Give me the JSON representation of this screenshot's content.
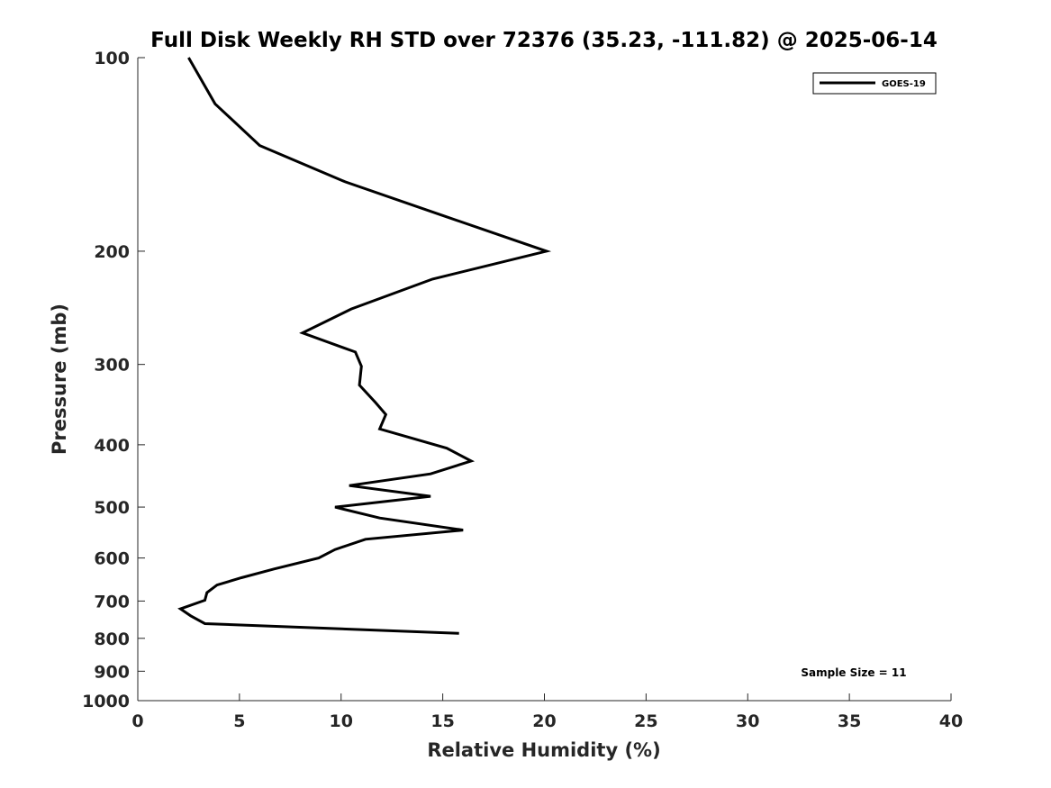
{
  "chart_data": {
    "type": "line",
    "title": "Full Disk Weekly RH STD over 72376 (35.23, -111.82) @ 2025-06-14",
    "xlabel": "Relative Humidity (%)",
    "ylabel": "Pressure (mb)",
    "xlim": [
      0,
      40
    ],
    "ylim": [
      100,
      1000
    ],
    "y_scale": "log",
    "y_reversed": true,
    "x_ticks": [
      0,
      5,
      10,
      15,
      20,
      25,
      30,
      35,
      40
    ],
    "y_ticks": [
      100,
      200,
      300,
      400,
      500,
      600,
      700,
      800,
      900,
      1000
    ],
    "grid": false,
    "legend_position": "top-right",
    "series": [
      {
        "name": "GOES-19",
        "color": "#000000",
        "x": [
          2.5,
          3.8,
          6.0,
          10.2,
          15.0,
          20.1,
          14.5,
          10.5,
          8.1,
          10.7,
          11.0,
          10.9,
          11.7,
          12.2,
          11.9,
          15.2,
          16.4,
          14.4,
          10.4,
          14.4,
          9.7,
          11.9,
          16.0,
          11.2,
          9.7,
          8.9,
          6.7,
          5.1,
          3.9,
          3.4,
          3.3,
          2.1,
          2.6,
          3.3,
          15.8
        ],
        "y": [
          100,
          118,
          137,
          156,
          176,
          200,
          221,
          246,
          268,
          287,
          302,
          323,
          344,
          359,
          378,
          405,
          424,
          444,
          463,
          481,
          500,
          520,
          543,
          561,
          582,
          600,
          624,
          644,
          661,
          679,
          698,
          720,
          738,
          759,
          786
        ]
      }
    ],
    "annotations": [
      {
        "text": "Sample Size = 11"
      }
    ]
  }
}
